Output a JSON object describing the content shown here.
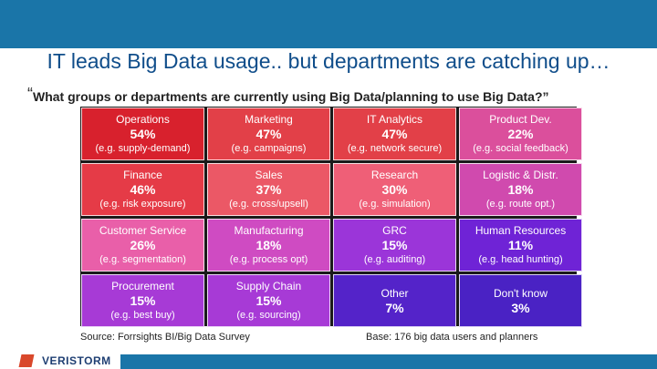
{
  "title": "IT leads Big Data usage.. but departments are catching up…",
  "question": {
    "open_mark": "“",
    "text": "What groups or departments are currently using Big Data/planning to use Big Data?”"
  },
  "grid": [
    {
      "name": "Operations",
      "pct": "54%",
      "example": "(e.g. supply-demand)",
      "color": "#d8212d"
    },
    {
      "name": "Marketing",
      "pct": "47%",
      "example": "(e.g. campaigns)",
      "color": "#e24048"
    },
    {
      "name": "IT Analytics",
      "pct": "47%",
      "example": "(e.g. network secure)",
      "color": "#e24048"
    },
    {
      "name": "Product Dev.",
      "pct": "22%",
      "example": "(e.g. social feedback)",
      "color": "#db4f9c"
    },
    {
      "name": "Finance",
      "pct": "46%",
      "example": "(e.g. risk exposure)",
      "color": "#e53b47"
    },
    {
      "name": "Sales",
      "pct": "37%",
      "example": "(e.g. cross/upsell)",
      "color": "#eb5866"
    },
    {
      "name": "Research",
      "pct": "30%",
      "example": "(e.g. simulation)",
      "color": "#ef5f77"
    },
    {
      "name": "Logistic & Distr.",
      "pct": "18%",
      "example": "(e.g. route opt.)",
      "color": "#d04aae"
    },
    {
      "name": "Customer Service",
      "pct": "26%",
      "example": "(e.g. segmentation)",
      "color": "#e95fa9"
    },
    {
      "name": "Manufacturing",
      "pct": "18%",
      "example": "(e.g. process opt)",
      "color": "#cf4bc2"
    },
    {
      "name": "GRC",
      "pct": "15%",
      "example": "(e.g. auditing)",
      "color": "#9b35d9"
    },
    {
      "name": "Human Resources",
      "pct": "11%",
      "example": "(e.g. head hunting)",
      "color": "#6f23d6"
    },
    {
      "name": "Procurement",
      "pct": "15%",
      "example": "(e.g. best buy)",
      "color": "#a73ad6"
    },
    {
      "name": "Supply Chain",
      "pct": "15%",
      "example": "(e.g. sourcing)",
      "color": "#a73ad6"
    },
    {
      "name": "Other",
      "pct": "7%",
      "example": "",
      "color": "#5423c9"
    },
    {
      "name": "Don't know",
      "pct": "3%",
      "example": "",
      "color": "#4a22c4"
    }
  ],
  "footer": {
    "source": "Source: Forrsights BI/Big Data Survey",
    "base": "Base: 176 big data users and planners"
  },
  "logo": {
    "text": "VERISTORM"
  },
  "colors": {
    "bar": "#1a75a8",
    "title": "#0f4d8a",
    "logo": "#1f3f73",
    "logo_accent": "#d9482b"
  }
}
